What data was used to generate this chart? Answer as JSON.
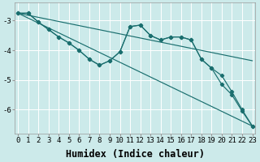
{
  "xlabel": "Humidex (Indice chaleur)",
  "bg_color": "#cceaea",
  "grid_color": "#ffffff",
  "line_color": "#1a6e6e",
  "xlim": [
    -0.3,
    23.3
  ],
  "ylim": [
    -6.8,
    -2.4
  ],
  "yticks": [
    -6,
    -5,
    -4,
    -3
  ],
  "x_ticks": [
    0,
    1,
    2,
    3,
    4,
    5,
    6,
    7,
    8,
    9,
    10,
    11,
    12,
    13,
    14,
    15,
    16,
    17,
    18,
    19,
    20,
    21,
    22,
    23
  ],
  "line1_x": [
    0,
    1,
    2,
    3,
    4,
    5,
    6,
    7,
    8,
    9,
    10,
    11,
    12,
    13,
    14,
    15,
    16,
    17,
    18,
    19,
    20,
    21,
    22,
    23
  ],
  "line1_y": [
    -2.75,
    -2.75,
    -3.05,
    -3.3,
    -3.55,
    -3.75,
    -4.0,
    -4.3,
    -4.5,
    -4.35,
    -4.05,
    -3.2,
    -3.15,
    -3.5,
    -3.65,
    -3.55,
    -3.55,
    -3.65,
    -4.3,
    -4.6,
    -5.15,
    -5.5,
    -6.05,
    -6.55
  ],
  "line2_x": [
    0,
    1,
    2,
    3,
    4,
    5,
    6,
    7,
    8,
    9,
    10,
    11,
    12,
    13,
    14,
    15,
    16,
    17,
    18,
    19,
    20,
    21,
    22,
    23
  ],
  "line2_y": [
    -2.75,
    -2.75,
    -3.05,
    -3.3,
    -3.55,
    -3.75,
    -4.0,
    -4.3,
    -4.5,
    -4.35,
    -4.05,
    -3.2,
    -3.15,
    -3.5,
    -3.65,
    -3.55,
    -3.55,
    -3.65,
    -4.3,
    -4.6,
    -4.85,
    -5.4,
    -6.0,
    -6.55
  ],
  "line3_x": [
    0,
    23
  ],
  "line3_y": [
    -2.75,
    -6.55
  ],
  "line4_x": [
    0,
    23
  ],
  "line4_y": [
    -2.75,
    -4.35
  ],
  "tick_fontsize": 6.5,
  "xlabel_fontsize": 8.5,
  "marker": "D",
  "markersize": 2.2,
  "linewidth": 0.85
}
